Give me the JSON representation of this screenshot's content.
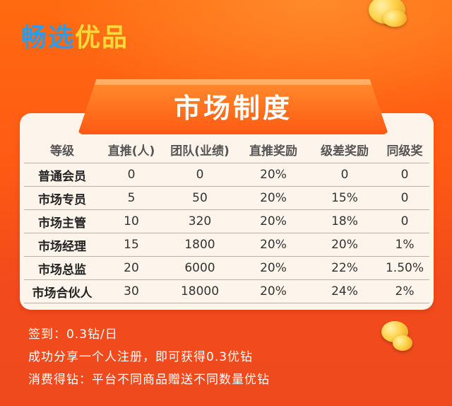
{
  "brand": {
    "part1": "畅选",
    "part2": "优品"
  },
  "section_title": "市场制度",
  "table": {
    "headers": [
      "等级",
      "直推(人)",
      "团队(业绩)",
      "直推奖励",
      "级差奖励",
      "同级奖"
    ],
    "rows": [
      [
        "普通会员",
        "0",
        "0",
        "20%",
        "0",
        "0"
      ],
      [
        "市场专员",
        "5",
        "50",
        "20%",
        "15%",
        "0"
      ],
      [
        "市场主管",
        "10",
        "320",
        "20%",
        "18%",
        "0"
      ],
      [
        "市场经理",
        "15",
        "1800",
        "20%",
        "20%",
        "1%"
      ],
      [
        "市场总监",
        "20",
        "6000",
        "20%",
        "22%",
        "1.50%"
      ],
      [
        "市场合伙人",
        "30",
        "18000",
        "20%",
        "24%",
        "2%"
      ]
    ]
  },
  "notes": [
    "签到：0.3钻/日",
    "成功分享一个人注册，即可获得0.3优钻",
    "消费得钻：平台不同商品赠送不同数量优钻"
  ],
  "colors": {
    "background": "#ff5a14",
    "card": "#fdf5ec",
    "brand_blue": "#2f9be6",
    "brand_yellow": "#ffd83a",
    "banner": "#ff6a18"
  }
}
